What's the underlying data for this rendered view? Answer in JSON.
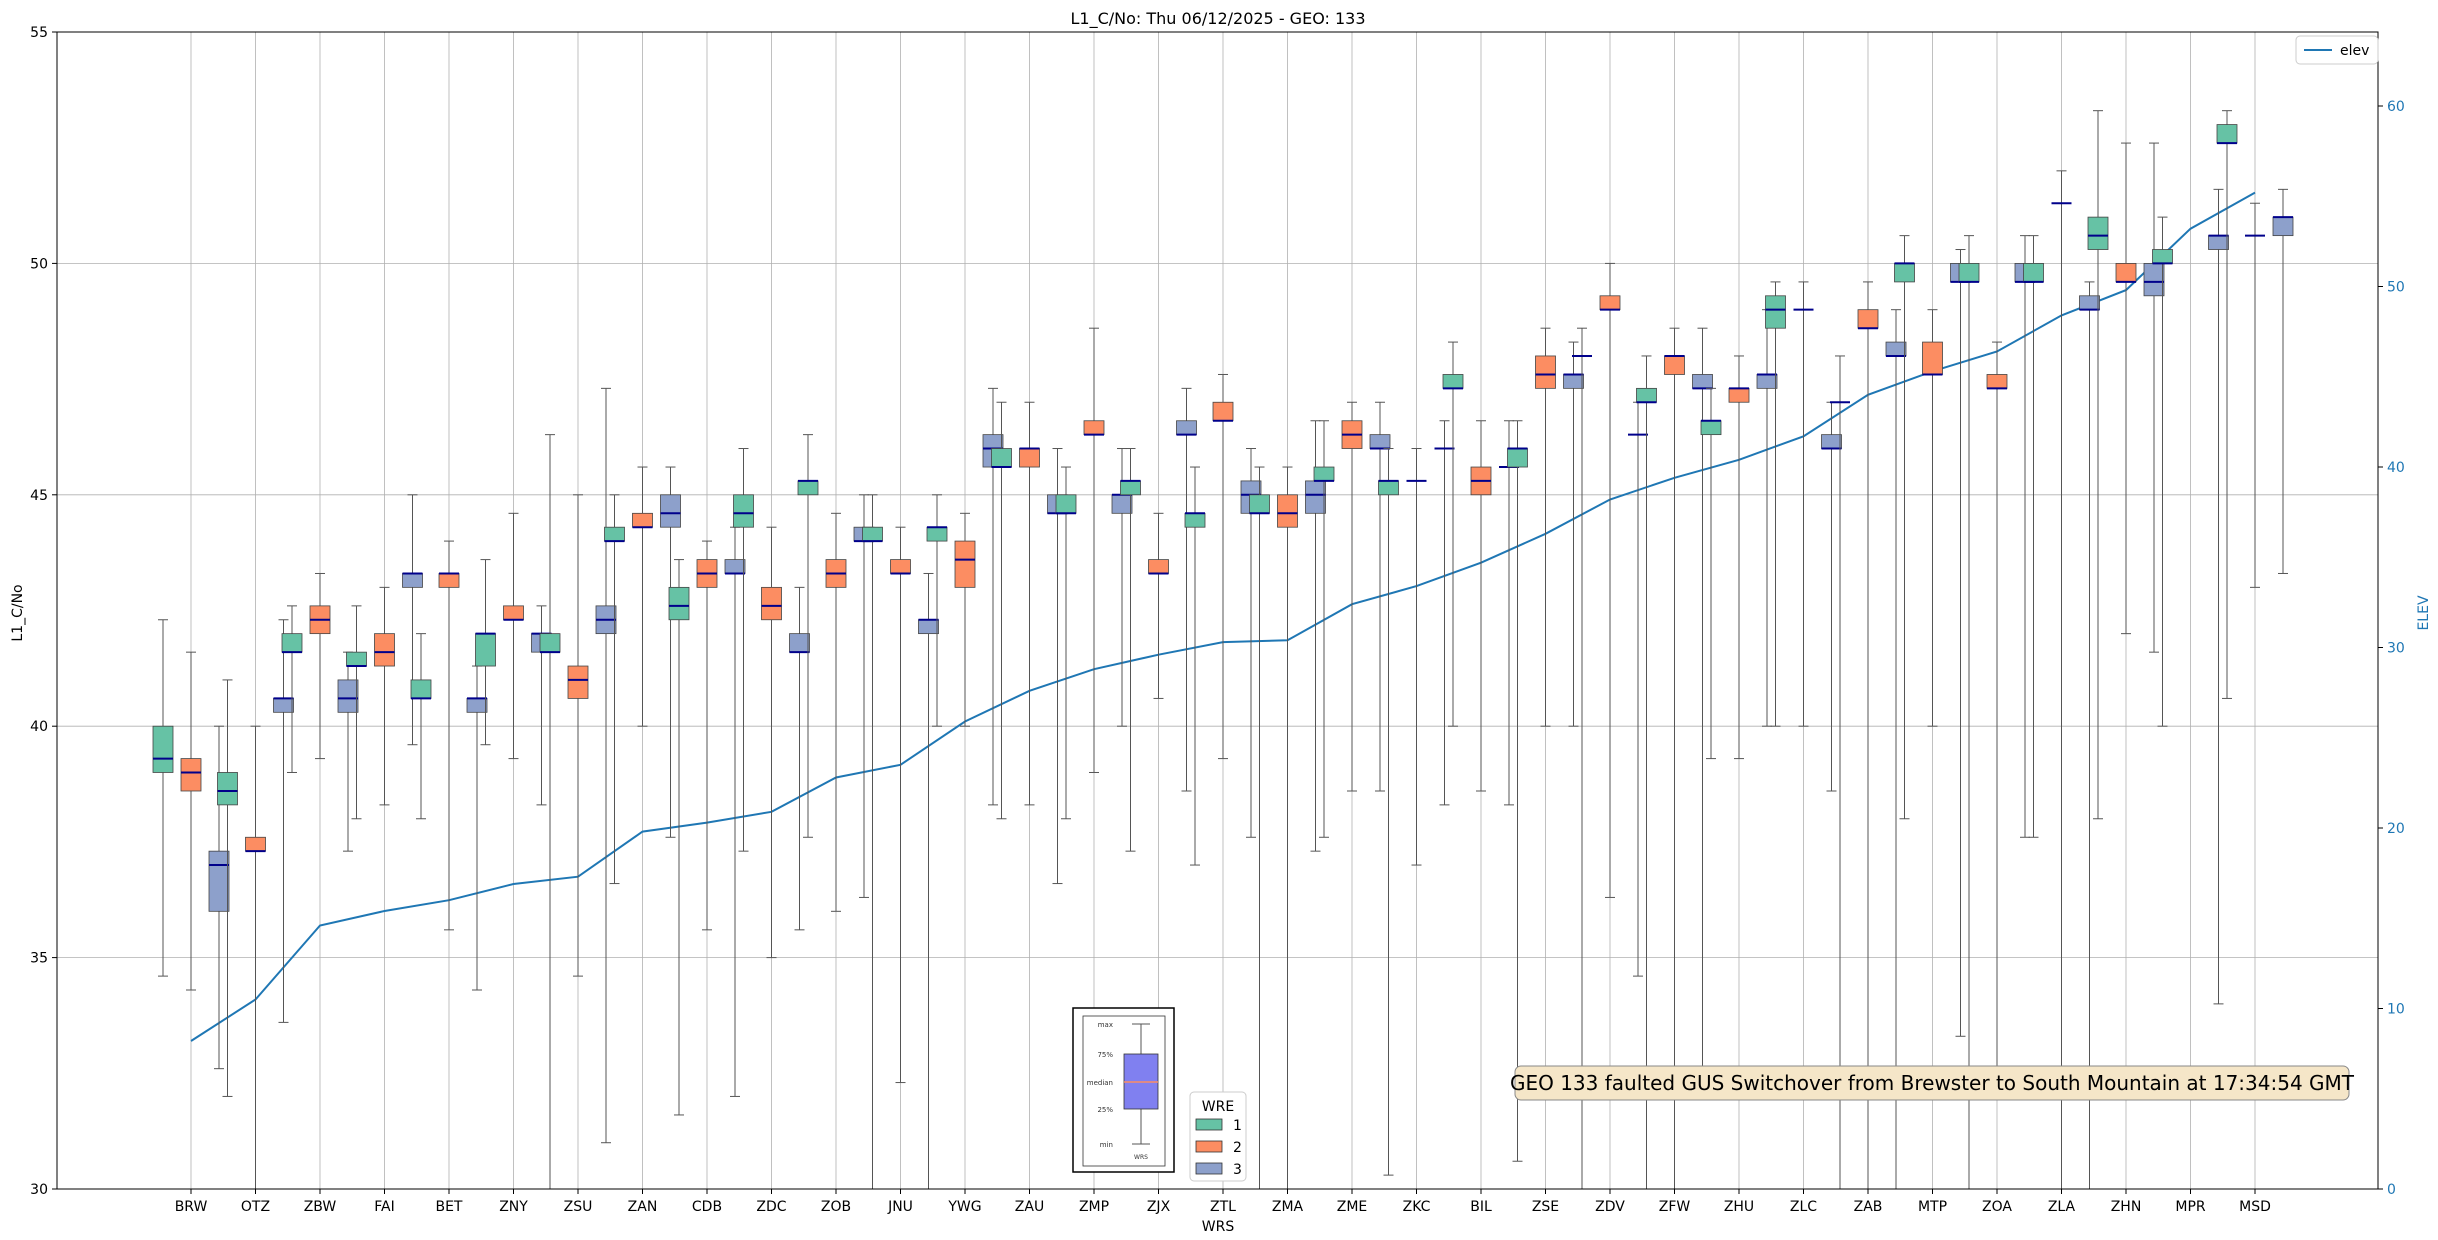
{
  "chart_data": {
    "type": "boxplot",
    "title": "L1_C/No: Thu 06/12/2025 - GEO: 133",
    "xlabel": "WRS",
    "ylabel": "L1_C/No",
    "ylabel_right": "ELEV",
    "ylim": [
      30,
      55
    ],
    "yticks": [
      30,
      35,
      40,
      45,
      50,
      55
    ],
    "ylim_right": [
      0,
      64.1
    ],
    "yticks_right": [
      0,
      10,
      20,
      30,
      40,
      50,
      60
    ],
    "grid": true,
    "categories": [
      "BRW",
      "OTZ",
      "ZBW",
      "FAI",
      "BET",
      "ZNY",
      "ZSU",
      "ZAN",
      "CDB",
      "ZDC",
      "ZOB",
      "JNU",
      "YWG",
      "ZAU",
      "ZMP",
      "ZJX",
      "ZTL",
      "ZMA",
      "ZME",
      "ZKC",
      "BIL",
      "ZSE",
      "ZDV",
      "ZFW",
      "ZHU",
      "ZLC",
      "ZAB",
      "MTP",
      "ZOA",
      "ZLA",
      "ZHN",
      "MPR",
      "MSD"
    ],
    "wre_colors": {
      "1": "#66c2a5",
      "2": "#fc8d62",
      "3": "#8da0cb"
    },
    "median_color": "#00008b",
    "boxes": [
      {
        "wrs": "BRW",
        "wre": 1,
        "q1": 39.0,
        "q3": 40.0,
        "median": 39.3,
        "min": 34.6,
        "max": 42.3
      },
      {
        "wrs": "BRW",
        "wre": 2,
        "q1": 38.6,
        "q3": 39.3,
        "median": 39.0,
        "min": 34.3,
        "max": 41.6
      },
      {
        "wrs": "BRW",
        "wre": 3,
        "q1": 36.0,
        "q3": 37.3,
        "median": 37.0,
        "min": 32.6,
        "max": 40.0
      },
      {
        "wrs": "OTZ",
        "wre": 1,
        "q1": 38.3,
        "q3": 39.0,
        "median": 38.6,
        "min": 32.0,
        "max": 41.0
      },
      {
        "wrs": "OTZ",
        "wre": 2,
        "q1": 37.3,
        "q3": 37.6,
        "median": 37.3,
        "min": 30.0,
        "max": 40.0
      },
      {
        "wrs": "OTZ",
        "wre": 3,
        "q1": 40.3,
        "q3": 40.6,
        "median": 40.6,
        "min": 33.6,
        "max": 42.3
      },
      {
        "wrs": "ZBW",
        "wre": 1,
        "q1": 41.6,
        "q3": 42.0,
        "median": 41.6,
        "min": 39.0,
        "max": 42.6
      },
      {
        "wrs": "ZBW",
        "wre": 2,
        "q1": 42.0,
        "q3": 42.6,
        "median": 42.3,
        "min": 39.3,
        "max": 43.3
      },
      {
        "wrs": "ZBW",
        "wre": 3,
        "q1": 40.3,
        "q3": 41.0,
        "median": 40.6,
        "min": 37.3,
        "max": 41.6
      },
      {
        "wrs": "FAI",
        "wre": 1,
        "q1": 41.3,
        "q3": 41.6,
        "median": 41.3,
        "min": 38.0,
        "max": 42.6
      },
      {
        "wrs": "FAI",
        "wre": 2,
        "q1": 41.3,
        "q3": 42.0,
        "median": 41.6,
        "min": 38.3,
        "max": 43.0
      },
      {
        "wrs": "FAI",
        "wre": 3,
        "q1": 43.0,
        "q3": 43.3,
        "median": 43.3,
        "min": 39.6,
        "max": 45.0
      },
      {
        "wrs": "BET",
        "wre": 1,
        "q1": 40.6,
        "q3": 41.0,
        "median": 40.6,
        "min": 38.0,
        "max": 42.0
      },
      {
        "wrs": "BET",
        "wre": 2,
        "q1": 43.0,
        "q3": 43.3,
        "median": 43.3,
        "min": 35.6,
        "max": 44.0
      },
      {
        "wrs": "BET",
        "wre": 3,
        "q1": 40.3,
        "q3": 40.6,
        "median": 40.6,
        "min": 34.3,
        "max": 41.3
      },
      {
        "wrs": "ZNY",
        "wre": 1,
        "q1": 41.3,
        "q3": 42.0,
        "median": 42.0,
        "min": 39.6,
        "max": 43.6
      },
      {
        "wrs": "ZNY",
        "wre": 2,
        "q1": 42.3,
        "q3": 42.6,
        "median": 42.3,
        "min": 39.3,
        "max": 44.6
      },
      {
        "wrs": "ZNY",
        "wre": 3,
        "q1": 41.6,
        "q3": 42.0,
        "median": 42.0,
        "min": 38.3,
        "max": 42.6
      },
      {
        "wrs": "ZSU",
        "wre": 1,
        "q1": 41.6,
        "q3": 42.0,
        "median": 41.6,
        "min": 30.0,
        "max": 46.3
      },
      {
        "wrs": "ZSU",
        "wre": 2,
        "q1": 40.6,
        "q3": 41.3,
        "median": 41.0,
        "min": 34.6,
        "max": 45.0
      },
      {
        "wrs": "ZSU",
        "wre": 3,
        "q1": 42.0,
        "q3": 42.6,
        "median": 42.3,
        "min": 31.0,
        "max": 47.3
      },
      {
        "wrs": "ZAN",
        "wre": 1,
        "q1": 44.0,
        "q3": 44.3,
        "median": 44.0,
        "min": 36.6,
        "max": 45.0
      },
      {
        "wrs": "ZAN",
        "wre": 2,
        "q1": 44.3,
        "q3": 44.6,
        "median": 44.3,
        "min": 40.0,
        "max": 45.6
      },
      {
        "wrs": "ZAN",
        "wre": 3,
        "q1": 44.3,
        "q3": 45.0,
        "median": 44.6,
        "min": 37.6,
        "max": 45.6
      },
      {
        "wrs": "CDB",
        "wre": 1,
        "q1": 42.3,
        "q3": 43.0,
        "median": 42.6,
        "min": 31.6,
        "max": 43.6
      },
      {
        "wrs": "CDB",
        "wre": 2,
        "q1": 43.0,
        "q3": 43.6,
        "median": 43.3,
        "min": 35.6,
        "max": 44.0
      },
      {
        "wrs": "CDB",
        "wre": 3,
        "q1": 43.3,
        "q3": 43.6,
        "median": 43.3,
        "min": 32.0,
        "max": 44.3
      },
      {
        "wrs": "ZDC",
        "wre": 1,
        "q1": 44.3,
        "q3": 45.0,
        "median": 44.6,
        "min": 37.3,
        "max": 46.0
      },
      {
        "wrs": "ZDC",
        "wre": 2,
        "q1": 42.3,
        "q3": 43.0,
        "median": 42.6,
        "min": 35.0,
        "max": 44.3
      },
      {
        "wrs": "ZDC",
        "wre": 3,
        "q1": 41.6,
        "q3": 42.0,
        "median": 41.6,
        "min": 35.6,
        "max": 43.0
      },
      {
        "wrs": "ZOB",
        "wre": 1,
        "q1": 45.0,
        "q3": 45.3,
        "median": 45.3,
        "min": 37.6,
        "max": 46.3
      },
      {
        "wrs": "ZOB",
        "wre": 2,
        "q1": 43.0,
        "q3": 43.6,
        "median": 43.3,
        "min": 36.0,
        "max": 44.6
      },
      {
        "wrs": "ZOB",
        "wre": 3,
        "q1": 44.0,
        "q3": 44.3,
        "median": 44.0,
        "min": 36.3,
        "max": 45.0
      },
      {
        "wrs": "JNU",
        "wre": 1,
        "q1": 44.0,
        "q3": 44.3,
        "median": 44.0,
        "min": 30.0,
        "max": 45.0
      },
      {
        "wrs": "JNU",
        "wre": 2,
        "q1": 43.3,
        "q3": 43.6,
        "median": 43.3,
        "min": 32.3,
        "max": 44.3
      },
      {
        "wrs": "JNU",
        "wre": 3,
        "q1": 42.0,
        "q3": 42.3,
        "median": 42.3,
        "min": 30.0,
        "max": 43.3
      },
      {
        "wrs": "YWG",
        "wre": 1,
        "q1": 44.0,
        "q3": 44.3,
        "median": 44.3,
        "min": 40.0,
        "max": 45.0
      },
      {
        "wrs": "YWG",
        "wre": 2,
        "q1": 43.0,
        "q3": 44.0,
        "median": 43.6,
        "min": 40.0,
        "max": 44.6
      },
      {
        "wrs": "YWG",
        "wre": 3,
        "q1": 45.6,
        "q3": 46.3,
        "median": 46.0,
        "min": 38.3,
        "max": 47.3
      },
      {
        "wrs": "ZAU",
        "wre": 1,
        "q1": 45.6,
        "q3": 46.0,
        "median": 45.6,
        "min": 38.0,
        "max": 47.0
      },
      {
        "wrs": "ZAU",
        "wre": 2,
        "q1": 45.6,
        "q3": 46.0,
        "median": 46.0,
        "min": 38.3,
        "max": 47.0
      },
      {
        "wrs": "ZAU",
        "wre": 3,
        "q1": 44.6,
        "q3": 45.0,
        "median": 44.6,
        "min": 36.6,
        "max": 46.0
      },
      {
        "wrs": "ZMP",
        "wre": 1,
        "q1": 44.6,
        "q3": 45.0,
        "median": 44.6,
        "min": 38.0,
        "max": 45.6
      },
      {
        "wrs": "ZMP",
        "wre": 2,
        "q1": 46.3,
        "q3": 46.6,
        "median": 46.3,
        "min": 39.0,
        "max": 48.6
      },
      {
        "wrs": "ZMP",
        "wre": 3,
        "q1": 44.6,
        "q3": 45.0,
        "median": 45.0,
        "min": 40.0,
        "max": 46.0
      },
      {
        "wrs": "ZJX",
        "wre": 1,
        "q1": 45.0,
        "q3": 45.3,
        "median": 45.3,
        "min": 37.3,
        "max": 46.0
      },
      {
        "wrs": "ZJX",
        "wre": 2,
        "q1": 43.3,
        "q3": 43.6,
        "median": 43.3,
        "min": 40.6,
        "max": 44.6
      },
      {
        "wrs": "ZJX",
        "wre": 3,
        "q1": 46.3,
        "q3": 46.6,
        "median": 46.3,
        "min": 38.6,
        "max": 47.3
      },
      {
        "wrs": "ZTL",
        "wre": 1,
        "q1": 44.3,
        "q3": 44.6,
        "median": 44.6,
        "min": 37.0,
        "max": 45.6
      },
      {
        "wrs": "ZTL",
        "wre": 2,
        "q1": 46.6,
        "q3": 47.0,
        "median": 46.6,
        "min": 39.3,
        "max": 47.6
      },
      {
        "wrs": "ZTL",
        "wre": 3,
        "q1": 44.6,
        "q3": 45.3,
        "median": 45.0,
        "min": 37.6,
        "max": 46.0
      },
      {
        "wrs": "ZMA",
        "wre": 1,
        "q1": 44.6,
        "q3": 45.0,
        "median": 44.6,
        "min": 30.0,
        "max": 45.6
      },
      {
        "wrs": "ZMA",
        "wre": 2,
        "q1": 44.3,
        "q3": 45.0,
        "median": 44.6,
        "min": 30.0,
        "max": 45.6
      },
      {
        "wrs": "ZMA",
        "wre": 3,
        "q1": 44.6,
        "q3": 45.3,
        "median": 45.0,
        "min": 37.3,
        "max": 46.6
      },
      {
        "wrs": "ZME",
        "wre": 1,
        "q1": 45.3,
        "q3": 45.6,
        "median": 45.3,
        "min": 37.6,
        "max": 46.6
      },
      {
        "wrs": "ZME",
        "wre": 2,
        "q1": 46.0,
        "q3": 46.6,
        "median": 46.3,
        "min": 38.6,
        "max": 47.0
      },
      {
        "wrs": "ZME",
        "wre": 3,
        "q1": 46.0,
        "q3": 46.3,
        "median": 46.0,
        "min": 38.6,
        "max": 47.0
      },
      {
        "wrs": "ZKC",
        "wre": 1,
        "q1": 45.0,
        "q3": 45.3,
        "median": 45.3,
        "min": 30.3,
        "max": 46.0
      },
      {
        "wrs": "ZKC",
        "wre": 2,
        "q1": 45.3,
        "q3": 45.3,
        "median": 45.3,
        "min": 37.0,
        "max": 46.0
      },
      {
        "wrs": "ZKC",
        "wre": 3,
        "q1": 46.0,
        "q3": 46.0,
        "median": 46.0,
        "min": 38.3,
        "max": 46.6
      },
      {
        "wrs": "BIL",
        "wre": 1,
        "q1": 47.3,
        "q3": 47.6,
        "median": 47.3,
        "min": 40.0,
        "max": 48.3
      },
      {
        "wrs": "BIL",
        "wre": 2,
        "q1": 45.0,
        "q3": 45.6,
        "median": 45.3,
        "min": 38.6,
        "max": 46.6
      },
      {
        "wrs": "BIL",
        "wre": 3,
        "q1": 45.6,
        "q3": 45.6,
        "median": 45.6,
        "min": 38.3,
        "max": 46.6
      },
      {
        "wrs": "ZSE",
        "wre": 1,
        "q1": 45.6,
        "q3": 46.0,
        "median": 46.0,
        "min": 30.6,
        "max": 46.6
      },
      {
        "wrs": "ZSE",
        "wre": 2,
        "q1": 47.3,
        "q3": 48.0,
        "median": 47.6,
        "min": 40.0,
        "max": 48.6
      },
      {
        "wrs": "ZSE",
        "wre": 3,
        "q1": 47.3,
        "q3": 47.6,
        "median": 47.6,
        "min": 40.0,
        "max": 48.3
      },
      {
        "wrs": "ZDV",
        "wre": 1,
        "q1": 48.0,
        "q3": 48.0,
        "median": 48.0,
        "min": 30.0,
        "max": 48.6
      },
      {
        "wrs": "ZDV",
        "wre": 2,
        "q1": 49.0,
        "q3": 49.3,
        "median": 49.0,
        "min": 36.3,
        "max": 50.0
      },
      {
        "wrs": "ZDV",
        "wre": 3,
        "q1": 46.3,
        "q3": 46.3,
        "median": 46.3,
        "min": 34.6,
        "max": 47.0
      },
      {
        "wrs": "ZFW",
        "wre": 1,
        "q1": 47.0,
        "q3": 47.3,
        "median": 47.0,
        "min": 30.0,
        "max": 48.0
      },
      {
        "wrs": "ZFW",
        "wre": 2,
        "q1": 47.6,
        "q3": 48.0,
        "median": 48.0,
        "min": 30.0,
        "max": 48.6
      },
      {
        "wrs": "ZFW",
        "wre": 3,
        "q1": 47.3,
        "q3": 47.6,
        "median": 47.3,
        "min": 32.0,
        "max": 48.6
      },
      {
        "wrs": "ZHU",
        "wre": 1,
        "q1": 46.3,
        "q3": 46.6,
        "median": 46.6,
        "min": 39.3,
        "max": 47.3
      },
      {
        "wrs": "ZHU",
        "wre": 2,
        "q1": 47.0,
        "q3": 47.3,
        "median": 47.3,
        "min": 39.3,
        "max": 48.0
      },
      {
        "wrs": "ZHU",
        "wre": 3,
        "q1": 47.3,
        "q3": 47.6,
        "median": 47.6,
        "min": 40.0,
        "max": 49.0
      },
      {
        "wrs": "ZLC",
        "wre": 1,
        "q1": 48.6,
        "q3": 49.3,
        "median": 49.0,
        "min": 40.0,
        "max": 49.6
      },
      {
        "wrs": "ZLC",
        "wre": 2,
        "q1": 49.0,
        "q3": 49.0,
        "median": 49.0,
        "min": 40.0,
        "max": 49.6
      },
      {
        "wrs": "ZLC",
        "wre": 3,
        "q1": 46.0,
        "q3": 46.3,
        "median": 46.0,
        "min": 38.6,
        "max": 47.0
      },
      {
        "wrs": "ZAB",
        "wre": 1,
        "q1": 47.0,
        "q3": 47.0,
        "median": 47.0,
        "min": 30.0,
        "max": 48.0
      },
      {
        "wrs": "ZAB",
        "wre": 2,
        "q1": 48.6,
        "q3": 49.0,
        "median": 48.6,
        "min": 30.0,
        "max": 49.6
      },
      {
        "wrs": "ZAB",
        "wre": 3,
        "q1": 48.0,
        "q3": 48.3,
        "median": 48.0,
        "min": 30.0,
        "max": 49.0
      },
      {
        "wrs": "MTP",
        "wre": 1,
        "q1": 49.6,
        "q3": 50.0,
        "median": 50.0,
        "min": 38.0,
        "max": 50.6
      },
      {
        "wrs": "MTP",
        "wre": 2,
        "q1": 47.6,
        "q3": 48.3,
        "median": 47.6,
        "min": 40.0,
        "max": 49.0
      },
      {
        "wrs": "MTP",
        "wre": 3,
        "q1": 49.6,
        "q3": 50.0,
        "median": 49.6,
        "min": 33.3,
        "max": 50.3
      },
      {
        "wrs": "ZOA",
        "wre": 1,
        "q1": 49.6,
        "q3": 50.0,
        "median": 49.6,
        "min": 30.0,
        "max": 50.6
      },
      {
        "wrs": "ZOA",
        "wre": 2,
        "q1": 47.3,
        "q3": 47.6,
        "median": 47.3,
        "min": 32.0,
        "max": 48.3
      },
      {
        "wrs": "ZOA",
        "wre": 3,
        "q1": 49.6,
        "q3": 50.0,
        "median": 49.6,
        "min": 37.6,
        "max": 50.6
      },
      {
        "wrs": "ZLA",
        "wre": 1,
        "q1": 49.6,
        "q3": 50.0,
        "median": 49.6,
        "min": 37.6,
        "max": 50.6
      },
      {
        "wrs": "ZLA",
        "wre": 2,
        "q1": 51.3,
        "q3": 51.3,
        "median": 51.3,
        "min": 30.0,
        "max": 52.0
      },
      {
        "wrs": "ZLA",
        "wre": 3,
        "q1": 49.0,
        "q3": 49.3,
        "median": 49.0,
        "min": 30.0,
        "max": 49.6
      },
      {
        "wrs": "ZHN",
        "wre": 1,
        "q1": 50.3,
        "q3": 51.0,
        "median": 50.6,
        "min": 38.0,
        "max": 53.3
      },
      {
        "wrs": "ZHN",
        "wre": 2,
        "q1": 49.6,
        "q3": 50.0,
        "median": 49.6,
        "min": 42.0,
        "max": 52.6
      },
      {
        "wrs": "ZHN",
        "wre": 3,
        "q1": 49.3,
        "q3": 50.0,
        "median": 49.6,
        "min": 41.6,
        "max": 52.6
      },
      {
        "wrs": "MPR",
        "wre": 1,
        "q1": 50.0,
        "q3": 50.3,
        "median": 50.0,
        "min": 40.0,
        "max": 51.0
      },
      {
        "wrs": "MPR",
        "wre": 3,
        "q1": 50.3,
        "q3": 50.6,
        "median": 50.6,
        "min": 34.0,
        "max": 51.6
      },
      {
        "wrs": "MSD",
        "wre": 1,
        "q1": 52.6,
        "q3": 53.0,
        "median": 52.6,
        "min": 40.6,
        "max": 53.3
      },
      {
        "wrs": "MSD",
        "wre": 2,
        "q1": 50.6,
        "q3": 50.6,
        "median": 50.6,
        "min": 43.0,
        "max": 51.3
      },
      {
        "wrs": "MSD",
        "wre": 3,
        "q1": 50.6,
        "q3": 51.0,
        "median": 51.0,
        "min": 43.3,
        "max": 51.6
      }
    ],
    "elev_series": {
      "name": "elev",
      "color": "#1f77b4",
      "values": [
        8.2,
        10.5,
        14.6,
        15.4,
        16.0,
        16.9,
        17.3,
        19.8,
        20.3,
        20.9,
        22.8,
        23.5,
        25.9,
        27.6,
        28.8,
        29.6,
        30.3,
        30.4,
        32.4,
        33.4,
        34.7,
        36.3,
        38.2,
        39.4,
        40.4,
        41.7,
        44.0,
        45.3,
        46.4,
        48.4,
        49.8,
        53.2,
        55.2
      ]
    },
    "legend_elev": {
      "label": "elev",
      "position": "top-right"
    },
    "legend_wre": {
      "title": "WRE",
      "entries": [
        {
          "label": "1",
          "color": "#66c2a5"
        },
        {
          "label": "2",
          "color": "#fc8d62"
        },
        {
          "label": "3",
          "color": "#8da0cb"
        }
      ]
    },
    "key_box": {
      "labels": [
        "max",
        "75%",
        "median",
        "25%",
        "min"
      ],
      "axis_label": "WRS",
      "fill": "#8080f0",
      "median_color": "#fc8d62"
    },
    "annotation": "GEO 133 faulted GUS Switchover from Brewster to South Mountain at 17:34:54 GMT"
  }
}
